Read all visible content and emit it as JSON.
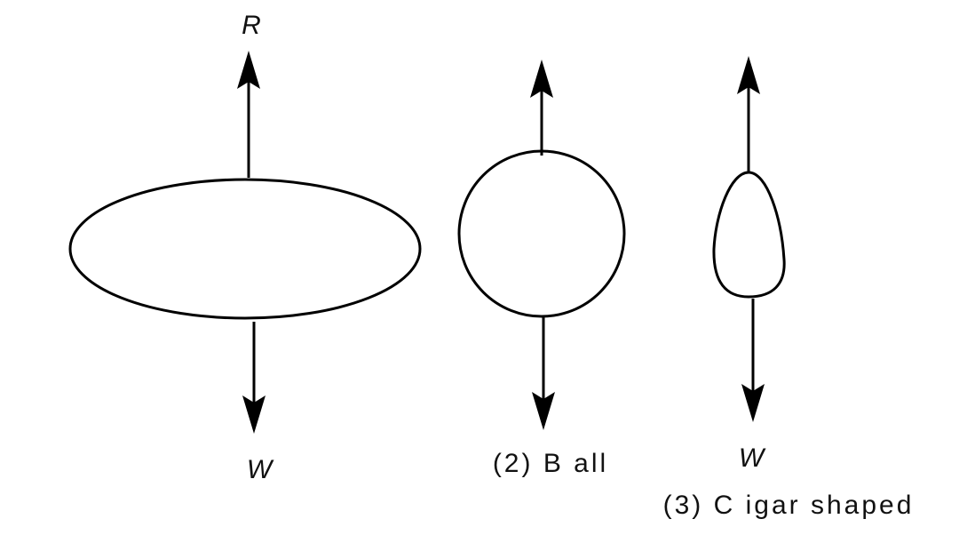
{
  "diagram": {
    "bodies": [
      {
        "id": "ellipse",
        "top_label": "R",
        "bottom_label": "W"
      },
      {
        "id": "ball",
        "caption": "(2) B all"
      },
      {
        "id": "cigar",
        "weight_label": "W",
        "caption": "(3) C igar shaped"
      }
    ],
    "colors": {
      "ink": "#000000",
      "background": "#ffffff"
    },
    "icons": [
      "upward-force-arrow",
      "downward-force-arrow"
    ]
  }
}
